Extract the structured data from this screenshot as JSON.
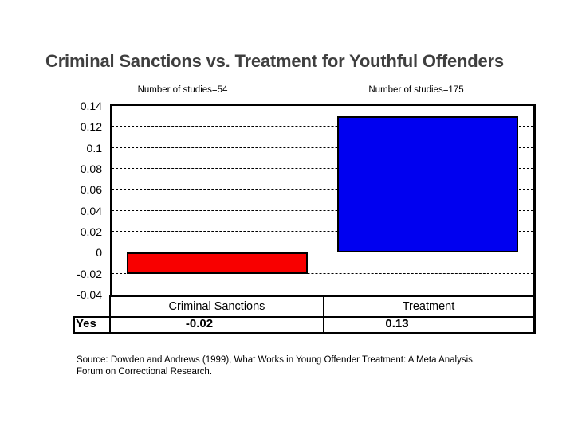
{
  "title": "Criminal Sanctions vs. Treatment for Youthful Offenders",
  "annotations": {
    "left": "Number of studies=54",
    "right": "Number of studies=175"
  },
  "chart_data": {
    "type": "bar",
    "categories": [
      "Criminal Sanctions",
      "Treatment"
    ],
    "series": [
      {
        "name": "Yes",
        "values": [
          -0.02,
          0.13
        ]
      }
    ],
    "bar_colors": [
      "#f80000",
      "#0000f0"
    ],
    "title": "",
    "xlabel": "",
    "ylabel": "",
    "ylim": [
      -0.04,
      0.14
    ],
    "ytick_labels": [
      "0.14",
      "0.12",
      "0.1",
      "0.08",
      "0.06",
      "0.04",
      "0.02",
      "0",
      "-0.02",
      "-0.04"
    ],
    "grid": "dashed horizontal gridlines",
    "legend_position": "none",
    "data_table": {
      "row_label": "Yes",
      "column_headers": [
        "Criminal Sanctions",
        "Treatment"
      ],
      "values": [
        "-0.02",
        "0.13"
      ]
    }
  },
  "source": {
    "line1": "Source: Dowden and Andrews (1999), What Works in Young Offender Treatment: A Meta Analysis.",
    "line2": "Forum on Correctional Research."
  }
}
